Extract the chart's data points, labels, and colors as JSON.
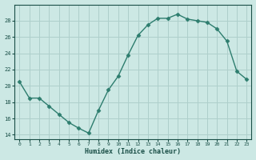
{
  "x": [
    0,
    1,
    2,
    3,
    4,
    5,
    6,
    7,
    8,
    9,
    10,
    11,
    12,
    13,
    14,
    15,
    16,
    17,
    18,
    19,
    20,
    21,
    22,
    23
  ],
  "y": [
    20.5,
    18.5,
    18.5,
    17.5,
    16.5,
    15.5,
    14.8,
    14.2,
    17.0,
    19.5,
    21.2,
    23.8,
    26.2,
    27.5,
    28.3,
    28.3,
    28.8,
    28.2,
    28.0,
    27.8,
    27.0,
    25.5,
    21.8,
    20.8
  ],
  "xlabel": "Humidex (Indice chaleur)",
  "ylim": [
    13.5,
    30
  ],
  "xlim": [
    -0.5,
    23.5
  ],
  "yticks": [
    14,
    16,
    18,
    20,
    22,
    24,
    26,
    28
  ],
  "xtick_labels": [
    "0",
    "1",
    "2",
    "3",
    "4",
    "5",
    "6",
    "7",
    "8",
    "9",
    "10",
    "11",
    "12",
    "13",
    "14",
    "15",
    "16",
    "17",
    "18",
    "19",
    "20",
    "21",
    "22",
    "23"
  ],
  "line_color": "#2d7d6e",
  "bg_color": "#cce8e4",
  "grid_color": "#aecfcb",
  "text_color": "#1a4f47",
  "marker_size": 2.5
}
